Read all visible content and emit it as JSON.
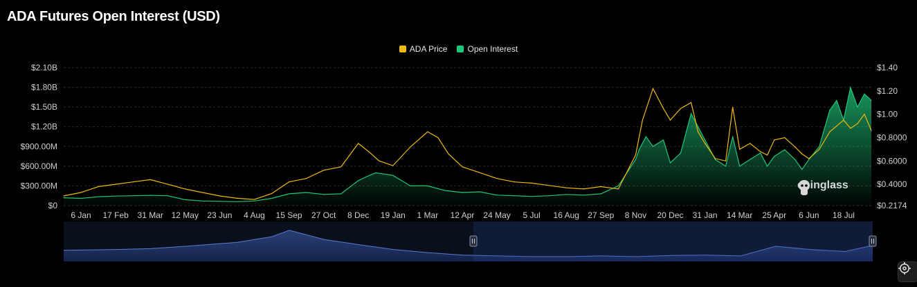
{
  "page": {
    "title": "ADA Futures Open Interest (USD)"
  },
  "legend": [
    {
      "label": "ADA Price",
      "color": "#f0b90b"
    },
    {
      "label": "Open Interest",
      "color": "#1ec67a"
    }
  ],
  "watermark": {
    "text": "coinglass",
    "icon": "coinglass-logo-icon"
  },
  "settings": {
    "icon": "gear-icon"
  },
  "navigator": {
    "left_handle_icon": "pause-handle-icon",
    "right_handle_icon": "pause-handle-icon"
  },
  "chart_data": {
    "type": "area",
    "title": "ADA Futures Open Interest (USD)",
    "grid": true,
    "legend_position": "top-center",
    "y_left": {
      "ticks": [
        "$0",
        "$300.00M",
        "$600.00M",
        "$900.00M",
        "$1.20B",
        "$1.50B",
        "$1.80B",
        "$2.10B"
      ],
      "range": [
        0,
        2100000000
      ]
    },
    "y_right": {
      "ticks": [
        "$0.2174",
        "$0.4000",
        "$0.6000",
        "$0.8000",
        "$1.00",
        "$1.20",
        "$1.40"
      ],
      "tick_values": [
        0.2174,
        0.4,
        0.6,
        0.8,
        1.0,
        1.2,
        1.4
      ],
      "range": [
        0.2174,
        1.4
      ]
    },
    "x_ticks": [
      "6 Jan",
      "17 Feb",
      "31 Mar",
      "12 May",
      "23 Jun",
      "4 Aug",
      "15 Sep",
      "27 Oct",
      "8 Dec",
      "19 Jan",
      "1 Mar",
      "12 Apr",
      "24 May",
      "5 Jul",
      "16 Aug",
      "27 Sep",
      "8 Nov",
      "20 Dec",
      "31 Jan",
      "14 Mar",
      "25 Apr",
      "6 Jun",
      "18 Jul"
    ],
    "x_range": [
      -0.5,
      22.8
    ],
    "series": [
      {
        "name": "Open Interest",
        "axis": "left",
        "color": "#1ec67a",
        "x": [
          -0.5,
          0,
          0.5,
          1,
          1.5,
          2,
          2.5,
          3,
          3.5,
          4,
          4.5,
          5,
          5.5,
          6,
          6.5,
          7,
          7.5,
          8,
          8.2,
          8.5,
          9,
          9.5,
          10,
          10.5,
          11,
          11.5,
          12,
          12.5,
          13,
          13.5,
          14,
          14.5,
          15,
          15.5,
          16,
          16.1,
          16.3,
          16.5,
          16.8,
          17,
          17.3,
          17.6,
          17.8,
          18,
          18.3,
          18.6,
          18.8,
          19,
          19.3,
          19.6,
          19.8,
          20,
          20.3,
          20.6,
          20.8,
          21,
          21.3,
          21.6,
          21.8,
          22,
          22.2,
          22.4,
          22.6,
          22.8
        ],
        "values": [
          120000000,
          110000000,
          135000000,
          145000000,
          150000000,
          155000000,
          150000000,
          90000000,
          70000000,
          65000000,
          60000000,
          70000000,
          110000000,
          180000000,
          200000000,
          170000000,
          180000000,
          380000000,
          430000000,
          500000000,
          460000000,
          300000000,
          300000000,
          230000000,
          200000000,
          210000000,
          160000000,
          150000000,
          140000000,
          150000000,
          170000000,
          160000000,
          180000000,
          300000000,
          700000000,
          850000000,
          1050000000,
          900000000,
          1000000000,
          650000000,
          800000000,
          1400000000,
          1200000000,
          1000000000,
          700000000,
          600000000,
          1050000000,
          600000000,
          700000000,
          800000000,
          600000000,
          750000000,
          850000000,
          700000000,
          550000000,
          700000000,
          900000000,
          1450000000,
          1600000000,
          1300000000,
          1800000000,
          1500000000,
          1700000000,
          1600000000
        ]
      },
      {
        "name": "ADA Price",
        "axis": "right",
        "color": "#f0b90b",
        "x": [
          -0.5,
          0,
          0.5,
          1,
          1.5,
          2,
          2.5,
          3,
          3.5,
          4,
          4.5,
          5,
          5.5,
          6,
          6.5,
          7,
          7.5,
          8,
          8.3,
          8.6,
          9,
          9.5,
          10,
          10.3,
          10.6,
          11,
          11.5,
          12,
          12.5,
          13,
          13.5,
          14,
          14.5,
          15,
          15.5,
          16,
          16.2,
          16.5,
          16.8,
          17,
          17.3,
          17.6,
          17.8,
          18,
          18.3,
          18.6,
          18.8,
          19,
          19.3,
          19.6,
          19.8,
          20,
          20.3,
          20.6,
          20.8,
          21,
          21.3,
          21.6,
          21.8,
          22,
          22.2,
          22.4,
          22.6,
          22.8
        ],
        "values": [
          0.3,
          0.33,
          0.38,
          0.4,
          0.42,
          0.44,
          0.4,
          0.36,
          0.33,
          0.3,
          0.28,
          0.27,
          0.32,
          0.42,
          0.45,
          0.52,
          0.55,
          0.75,
          0.68,
          0.6,
          0.56,
          0.72,
          0.85,
          0.8,
          0.66,
          0.55,
          0.5,
          0.45,
          0.42,
          0.41,
          0.39,
          0.37,
          0.36,
          0.38,
          0.36,
          0.65,
          0.95,
          1.22,
          1.05,
          0.95,
          1.05,
          1.1,
          0.85,
          0.75,
          0.62,
          0.6,
          1.06,
          0.7,
          0.75,
          0.68,
          0.65,
          0.78,
          0.8,
          0.72,
          0.66,
          0.62,
          0.7,
          0.85,
          0.9,
          0.95,
          0.88,
          0.92,
          1.0,
          0.86
        ]
      }
    ],
    "navigator": {
      "x": [
        -0.5,
        1,
        2,
        3,
        4.5,
        5,
        5.5,
        6,
        7,
        8,
        9,
        10,
        11,
        12,
        13,
        14,
        15,
        16,
        17,
        18,
        19,
        20,
        21,
        22,
        22.8
      ],
      "values": [
        0.28,
        0.3,
        0.32,
        0.38,
        0.48,
        0.55,
        0.62,
        0.78,
        0.55,
        0.42,
        0.3,
        0.22,
        0.16,
        0.14,
        0.12,
        0.12,
        0.14,
        0.12,
        0.15,
        0.16,
        0.14,
        0.38,
        0.3,
        0.25,
        0.4
      ],
      "selection": [
        11.3,
        22.8
      ]
    }
  }
}
